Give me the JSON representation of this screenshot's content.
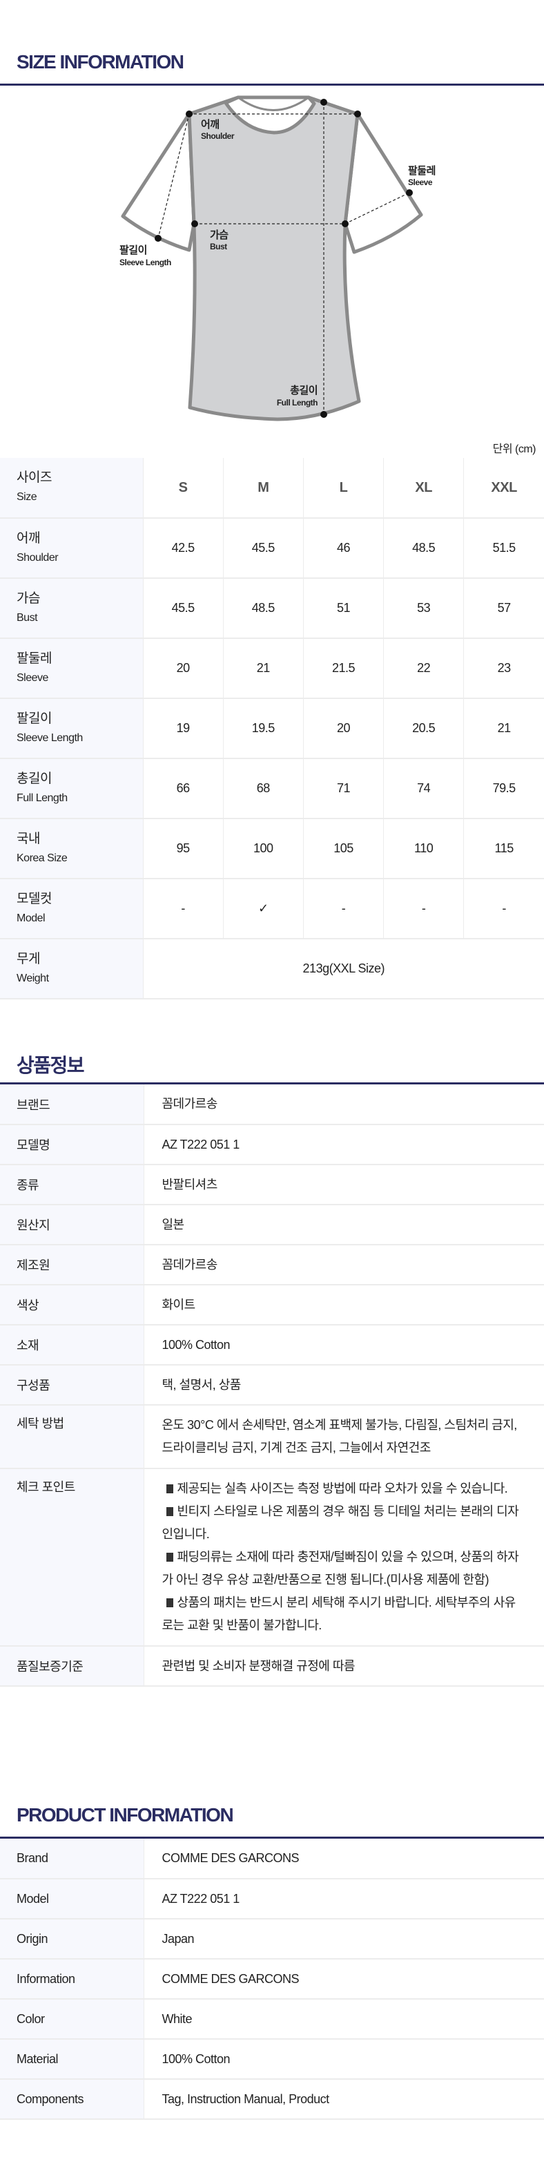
{
  "size_section": {
    "title": "SIZE INFORMATION",
    "diagram_labels": {
      "shoulder_ko": "어깨",
      "shoulder_en": "Shoulder",
      "sleeve_ko": "팔둘레",
      "sleeve_en": "Sleeve",
      "bust_ko": "가슴",
      "bust_en": "Bust",
      "sleeve_length_ko": "팔길이",
      "sleeve_length_en": "Sleeve Length",
      "full_length_ko": "총길이",
      "full_length_en": "Full Length"
    },
    "unit": "단위 (cm)",
    "header": {
      "ko": "사이즈",
      "en": "Size",
      "sizes": [
        "S",
        "M",
        "L",
        "XL",
        "XXL"
      ]
    },
    "rows": [
      {
        "ko": "어깨",
        "en": "Shoulder",
        "values": [
          "42.5",
          "45.5",
          "46",
          "48.5",
          "51.5"
        ]
      },
      {
        "ko": "가슴",
        "en": "Bust",
        "values": [
          "45.5",
          "48.5",
          "51",
          "53",
          "57"
        ]
      },
      {
        "ko": "팔둘레",
        "en": "Sleeve",
        "values": [
          "20",
          "21",
          "21.5",
          "22",
          "23"
        ]
      },
      {
        "ko": "팔길이",
        "en": "Sleeve Length",
        "values": [
          "19",
          "19.5",
          "20",
          "20.5",
          "21"
        ]
      },
      {
        "ko": "총길이",
        "en": "Full Length",
        "values": [
          "66",
          "68",
          "71",
          "74",
          "79.5"
        ]
      },
      {
        "ko": "국내",
        "en": "Korea Size",
        "values": [
          "95",
          "100",
          "105",
          "110",
          "115"
        ]
      },
      {
        "ko": "모델컷",
        "en": "Model",
        "values": [
          "-",
          "✓",
          "-",
          "-",
          "-"
        ]
      }
    ],
    "weight": {
      "ko": "무게",
      "en": "Weight",
      "value": "213g(XXL Size)"
    }
  },
  "product_info_ko": {
    "title": "상품정보",
    "rows": [
      {
        "label": "브랜드",
        "value": "꼼데가르송"
      },
      {
        "label": "모델명",
        "value": "AZ T222 051 1"
      },
      {
        "label": "종류",
        "value": "반팔티셔츠"
      },
      {
        "label": "원산지",
        "value": "일본"
      },
      {
        "label": "제조원",
        "value": "꼼데가르송"
      },
      {
        "label": "색상",
        "value": "화이트"
      },
      {
        "label": "소재",
        "value": "100% Cotton"
      },
      {
        "label": "구성품",
        "value": "택, 설명서, 상품"
      },
      {
        "label": "세탁 방법",
        "value": "온도 30°C 에서 손세탁만, 염소계 표백제 불가능, 다림질, 스팀처리 금지, 드라이클리닝 금지, 기계 건조 금지, 그늘에서 자연건조"
      },
      {
        "label": "체크 포인트",
        "points": [
          "제공되는 실측 사이즈는 측정 방법에 따라 오차가 있을 수 있습니다.",
          "빈티지 스타일로 나온 제품의 경우 해짐 등 디테일 처리는 본래의 디자인입니다.",
          "패딩의류는 소재에 따라 충전재/털빠짐이 있을 수 있으며, 상품의 하자가 아닌 경우 유상 교환/반품으로 진행 됩니다.(미사용 제품에 한함)",
          "상품의 패치는 반드시 분리 세탁해 주시기 바랍니다. 세탁부주의 사유로는 교환 및 반품이 불가합니다."
        ]
      },
      {
        "label": "품질보증기준",
        "value": "관련법 및 소비자 분쟁해결 규정에 따름"
      }
    ]
  },
  "product_info_en": {
    "title": "PRODUCT INFORMATION",
    "rows": [
      {
        "label": "Brand",
        "value": "COMME DES GARCONS"
      },
      {
        "label": "Model",
        "value": "AZ T222 051 1"
      },
      {
        "label": "Origin",
        "value": "Japan"
      },
      {
        "label": "Information",
        "value": "COMME DES GARCONS"
      },
      {
        "label": "Color",
        "value": "White"
      },
      {
        "label": "Material",
        "value": "100% Cotton"
      },
      {
        "label": "Components",
        "value": "Tag, Instruction Manual, Product"
      }
    ]
  },
  "colors": {
    "accent": "#2b2d62",
    "label_bg": "#f7f8fd",
    "shirt_fill": "#d1d2d4",
    "shirt_stroke": "#8a8a8a"
  }
}
